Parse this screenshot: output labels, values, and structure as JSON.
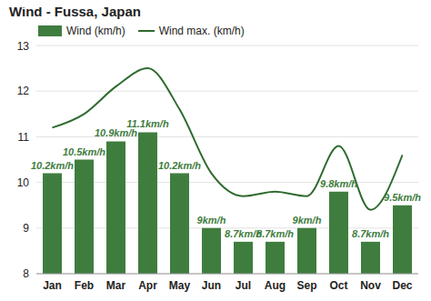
{
  "chart_data": {
    "type": "bar",
    "title": "Wind - Fussa, Japan",
    "categories": [
      "Jan",
      "Feb",
      "Mar",
      "Apr",
      "May",
      "Jun",
      "Jul",
      "Aug",
      "Sep",
      "Oct",
      "Nov",
      "Dec"
    ],
    "series": [
      {
        "name": "Wind (km/h)",
        "type": "bar",
        "color": "#3f7d3f",
        "data_labels": true,
        "values": [
          10.2,
          10.5,
          10.9,
          11.1,
          10.2,
          9,
          8.7,
          8.7,
          9,
          9.8,
          8.7,
          9.5
        ],
        "value_labels": [
          "10.2km/h",
          "10.5km/h",
          "10.9km/h",
          "11.1km/h",
          "10.2km/h",
          "9km/h",
          "8.7km/h",
          "8.7km/h",
          "9km/h",
          "9.8km/h",
          "8.7km/h",
          "9.5km/h"
        ]
      },
      {
        "name": "Wind max. (km/h)",
        "type": "line",
        "color": "#2f6b2f",
        "values": [
          11.2,
          11.5,
          12.1,
          12.5,
          11.6,
          10.2,
          9.7,
          9.8,
          9.7,
          10.8,
          9.4,
          10.6
        ]
      }
    ],
    "ylim": [
      8,
      13
    ],
    "yticks": [
      8,
      9,
      10,
      11,
      12,
      13
    ],
    "grid": true,
    "legend": "upper left"
  }
}
